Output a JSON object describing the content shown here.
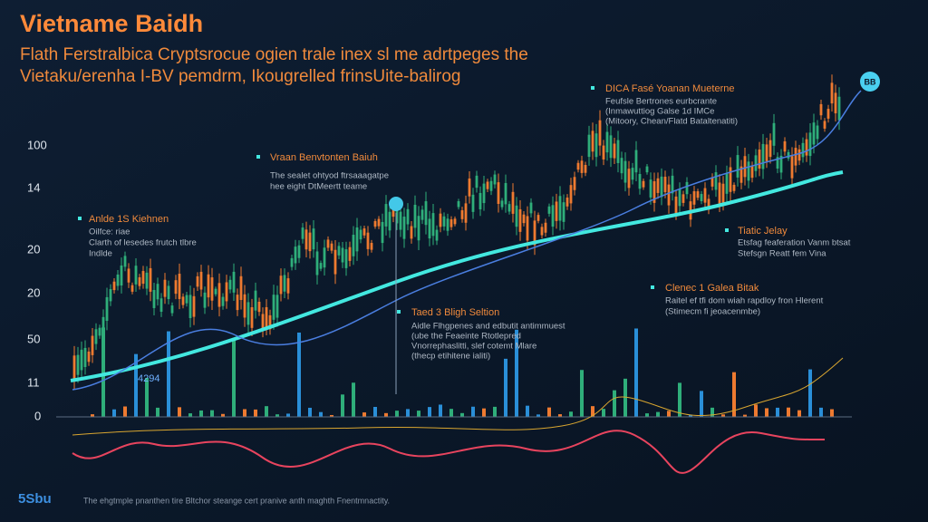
{
  "header": {
    "title": "Vietname Baidh",
    "subtitle": [
      "Flath Ferstralbica Cryptsrocue ogien trale inex sl me adrtpeges the",
      "Vietaku/erenha I-BV pemdrm, Ikougrelled frinsUite-balirog"
    ]
  },
  "axis_labels": [
    "100",
    "14",
    "20",
    "20",
    "50",
    "11",
    "0"
  ],
  "annotations": [
    {
      "title": "Anlde 1S Kiehnen",
      "body": [
        "Oilfce: riae",
        "Clarth of lesedes frutch tlbre",
        "Indlde"
      ]
    },
    {
      "title": "Vraan Benvtonten Baiuh",
      "body": [
        "The sealet ohtyod ftrsaaagatpe",
        "hee eight DtMeertt teame"
      ]
    },
    {
      "title": "DICA Fasé Yoanan Mueterne",
      "body": [
        "Feufsle Bertrones eurbcrante",
        "(Inmawuttiog Galse 1d IMCe",
        "(Mitoory, Chean/Flatd Bataltenatiti)"
      ]
    },
    {
      "title": "Tiatic Jelay",
      "body": [
        "Etsfag feaferation Vanm btsat",
        "Stefsgn Reatt fem Vina"
      ]
    },
    {
      "title": "Clenec 1 Galea Bitak",
      "body": [
        "Raitel ef tfi dom wiah rapdloy fron Hlerent",
        "(Stimecm fi jeoacenmbe)"
      ]
    },
    {
      "title": "Taed 3 Bligh Seltion",
      "body": [
        "Aidle Flhgpenes and edbutit antimmuest",
        "(ube the Feaeinte Rtotlepred",
        "Vnorrephaslitti, slef cotemt Mlare",
        "(thecp etihitene ialiti)"
      ]
    }
  ],
  "marker_label": "4294",
  "badge": "BB",
  "footer": {
    "logo": "5Sbu",
    "text": "The ehgtmple pnanthen tire Bltchor steange cert pranive anth maghth Fnentmnactity."
  }
}
